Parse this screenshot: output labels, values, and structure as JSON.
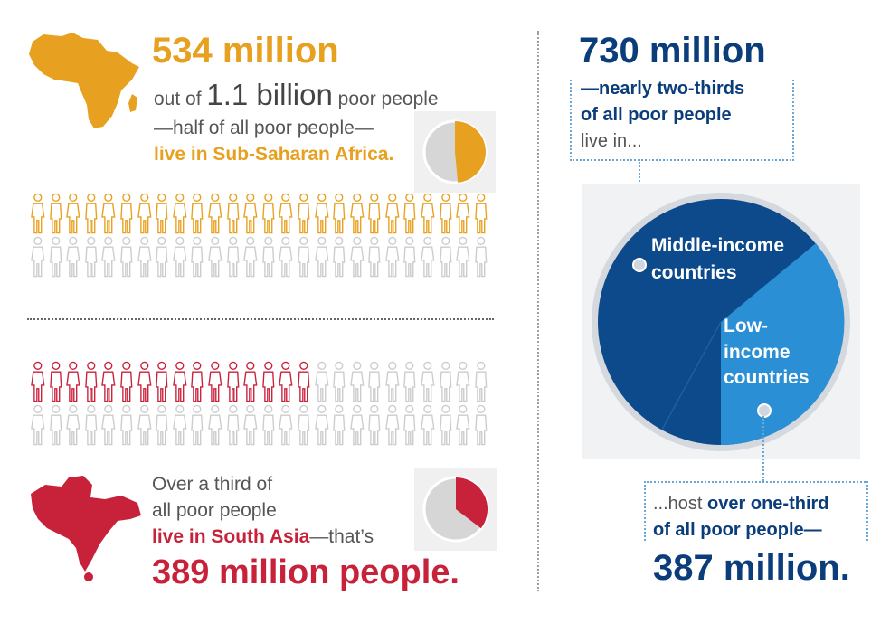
{
  "africa": {
    "headline": "534 million",
    "line1_prefix": "out of",
    "line1_big": "1.1 billion",
    "line1_suffix": "poor people",
    "line2": "—half of all poor people—",
    "line3": "live in Sub-Saharan Africa.",
    "share": 0.485
  },
  "south_asia": {
    "line1": "Over a third of",
    "line2": "all poor people",
    "line3_highlight": "live in South Asia",
    "line3_rest": "—that’s",
    "headline": "389 million people.",
    "share": 0.354
  },
  "income": {
    "headline": "730 million",
    "intro1": "—nearly two-thirds",
    "intro2": "of all poor people",
    "intro3": "live in...",
    "middle_label1": "Middle-income",
    "middle_label2": "countries",
    "low_label1": "Low-",
    "low_label2": "income",
    "low_label3": "countries",
    "outro1": "...host",
    "outro1_bold": "over one-third",
    "outro2": "of all poor people—",
    "outro_headline": "387 million."
  },
  "colors": {
    "orange": "#E8A020",
    "red": "#C8213A",
    "navy": "#0A3D7A",
    "light_blue": "#2A8FD4",
    "gray_icon": "#cccccc"
  },
  "icons": {
    "africa_map": "africa-map-icon",
    "south_asia_map": "south-asia-map-icon",
    "person": "person-icon"
  }
}
